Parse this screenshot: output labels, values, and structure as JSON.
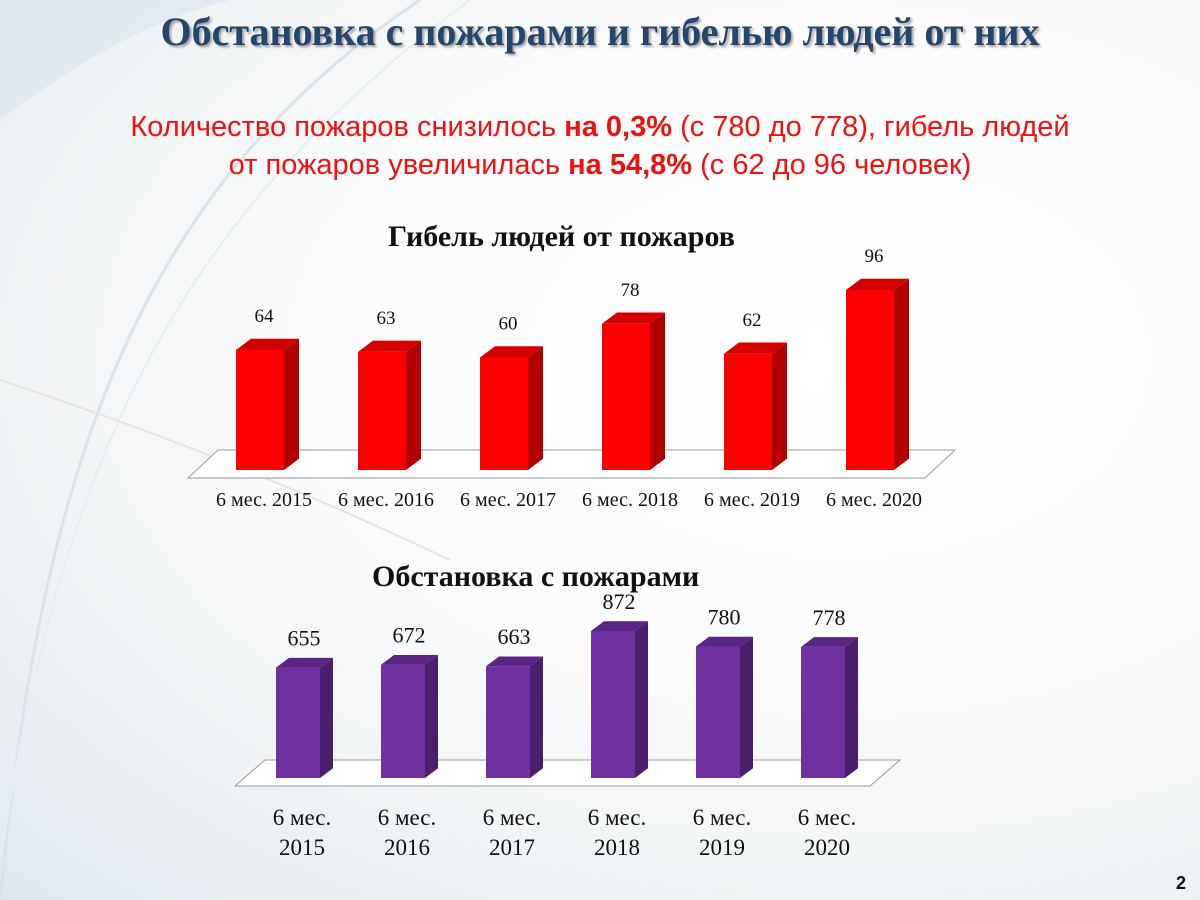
{
  "slide": {
    "title": "Обстановка с пожарами и гибелью людей от них",
    "summary": {
      "l1a": "Количество пожаров снизилось ",
      "l1b": "на 0,3%",
      "l1c": " (с 780 до 778), гибель людей",
      "l2a": "от пожаров увеличилась ",
      "l2b": "на 54,8%",
      "l2c": " (с 62 до 96 человек)"
    },
    "page_number": "2"
  },
  "colors": {
    "deaths_front": "#ff0000",
    "deaths_side": "#b00000",
    "deaths_top": "#d40000",
    "fires_front": "#7030a0",
    "fires_side": "#4a1f6b",
    "fires_top": "#5b2585"
  },
  "chart_data": [
    {
      "type": "bar",
      "title": "Гибель людей от пожаров",
      "categories": [
        "6 мес. 2015",
        "6 мес. 2016",
        "6 мес. 2017",
        "6 мес. 2018",
        "6 мес. 2019",
        "6 мес. 2020"
      ],
      "values": [
        64,
        63,
        60,
        78,
        62,
        96
      ],
      "data_labels": [
        "64",
        "63",
        "60",
        "78",
        "62",
        "96"
      ],
      "ylim": [
        0,
        100
      ]
    },
    {
      "type": "bar",
      "title": "Обстановка с пожарами",
      "categories": [
        "6 мес. 2015",
        "6 мес. 2016",
        "6 мес. 2017",
        "6 мес. 2018",
        "6 мес. 2019",
        "6 мес. 2020"
      ],
      "values": [
        655,
        672,
        663,
        872,
        780,
        778
      ],
      "data_labels": [
        "655",
        "672",
        "663",
        "872",
        "780",
        "778"
      ],
      "ylim": [
        0,
        900
      ]
    }
  ]
}
